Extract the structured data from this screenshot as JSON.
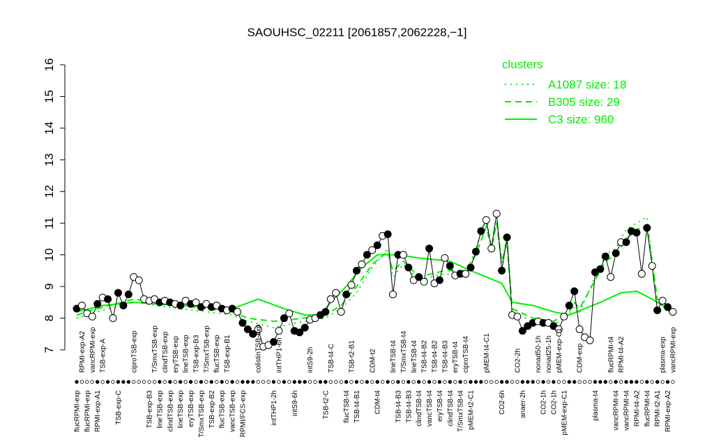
{
  "chart_data": {
    "type": "line",
    "title": "SAOUHSC_02211 [2061857,2062228,−1]",
    "ylim": [
      7,
      16
    ],
    "yticks": [
      7,
      8,
      9,
      10,
      11,
      12,
      13,
      14,
      15,
      16
    ],
    "color": "#000000",
    "categories": [
      "flucRPMI-exp",
      "RPMI-exp-A2",
      "flucRPMI-exp",
      "vancRPMI-exp",
      "RPMI-exp-A1",
      "TSB-exp-A",
      null,
      null,
      "TSB-exp-C",
      null,
      null,
      "ciproTSB-exp",
      null,
      null,
      "TSB-exp-B3",
      "T/SmxTSB-exp",
      "lineTSB-exp",
      "clindTSB-exp",
      "clindTSB-exp",
      "eryTSB-exp",
      "lineTSB-exp",
      "lineTSB-exp",
      "eryTSB-exp",
      "TSB-exp-B3",
      "T/SmxTSB-exp",
      "T/SmxTSB-exp",
      "TSB-exp-B2",
      "flucTSB-exp",
      "flucTSB-exp",
      "TSB-exp-B1",
      "vancTSB-exp",
      null,
      "RPMI/FCS-exp",
      null,
      null,
      "colistinTSB-exp",
      null,
      null,
      "intTHP1-2h",
      "intTHP1-6h",
      null,
      null,
      "intS9-6h",
      null,
      null,
      "intS9-2h",
      null,
      null,
      "TSB-t2-C",
      "TSB-t4-C",
      null,
      null,
      "flucTSB-t4",
      "TSB-t2-B1",
      "TSB-t4-B1",
      null,
      null,
      "CDM-t2",
      "CDM-t4",
      null,
      null,
      "lineTSB-t4",
      "TSB-t4-B3",
      "T/SmxTSB-t4",
      "TSB-t4-B3",
      "lineTSB-t4",
      "clindTSB-t4",
      "TSB-t4-B2",
      "vancTSB-t4",
      "TSB-t4-B2",
      "eryTSB-t4",
      "TSB-t4-B3",
      "clindTSB-t4",
      "eryTSB-t4",
      "T/SmxTSB-t4",
      "ciproTSB-t4",
      "pMEM-t2-C1",
      null,
      null,
      "pMEM-t4-C1",
      null,
      null,
      "CO2-6h",
      null,
      null,
      "CO2-2h",
      "anaer-2h",
      null,
      null,
      "nonad50-1h",
      "CO2-1h",
      "nonad25-1h",
      "CO2-1h",
      "pMEM-exp-C1",
      "pMEM-exp-C1",
      null,
      null,
      "CDM-exp",
      null,
      null,
      "plasma-t4",
      null,
      null,
      "flucRPMI-t4",
      "vancRPMI-t4",
      "RPMI-t4-A2",
      "vancRPMI-t4",
      null,
      "RPMI-t4-A2",
      null,
      "flucRPMI-t4",
      null,
      "RPMI-t2-A1",
      "plasma-exp",
      "RPMI-exp-A2",
      "vancRPMI-exp"
    ],
    "values": [
      8.3,
      8.4,
      8.15,
      8.05,
      8.45,
      8.65,
      8.6,
      8.0,
      8.8,
      8.4,
      8.75,
      9.3,
      9.2,
      8.6,
      8.55,
      8.6,
      8.5,
      8.55,
      8.5,
      8.45,
      8.4,
      8.55,
      8.45,
      8.5,
      8.35,
      8.45,
      8.35,
      8.4,
      8.3,
      8.25,
      8.3,
      8.2,
      7.85,
      7.65,
      7.5,
      7.65,
      7.1,
      7.15,
      7.25,
      7.6,
      8.0,
      8.15,
      7.6,
      7.55,
      7.7,
      7.95,
      8.0,
      8.1,
      8.2,
      8.6,
      8.8,
      8.2,
      8.75,
      9.05,
      9.5,
      9.7,
      10.0,
      10.15,
      10.3,
      10.6,
      10.65,
      8.75,
      10.0,
      10.0,
      9.6,
      9.2,
      9.3,
      9.15,
      10.2,
      9.1,
      9.2,
      9.9,
      9.65,
      9.35,
      9.4,
      9.4,
      9.6,
      10.1,
      10.75,
      11.1,
      10.2,
      11.3,
      9.5,
      10.55,
      8.1,
      8.05,
      7.6,
      7.75,
      7.85,
      7.9,
      7.85,
      7.85,
      7.75,
      7.65,
      8.05,
      8.4,
      8.85,
      7.65,
      7.4,
      7.3,
      9.45,
      9.55,
      9.95,
      9.3,
      10.05,
      10.4,
      10.4,
      10.75,
      10.7,
      9.4,
      10.85,
      9.65,
      8.25,
      8.55,
      8.35,
      8.2
    ],
    "filled": [
      true,
      false,
      false,
      false,
      true,
      false,
      true,
      false,
      true,
      true,
      true,
      false,
      false,
      false,
      false,
      false,
      true,
      false,
      true,
      false,
      true,
      false,
      true,
      false,
      true,
      false,
      true,
      false,
      true,
      false,
      true,
      false,
      true,
      true,
      true,
      false,
      false,
      false,
      true,
      false,
      true,
      false,
      true,
      true,
      true,
      false,
      false,
      true,
      true,
      false,
      false,
      false,
      true,
      false,
      true,
      false,
      true,
      false,
      true,
      false,
      true,
      false,
      true,
      false,
      true,
      false,
      true,
      false,
      true,
      false,
      true,
      false,
      true,
      false,
      true,
      false,
      true,
      true,
      true,
      false,
      false,
      false,
      true,
      true,
      false,
      false,
      true,
      true,
      true,
      false,
      true,
      false,
      true,
      false,
      false,
      true,
      true,
      false,
      false,
      false,
      true,
      true,
      true,
      false,
      true,
      false,
      true,
      true,
      true,
      false,
      true,
      false,
      true,
      false,
      true,
      false
    ],
    "legend": {
      "title": "clusters",
      "position": "top-right"
    },
    "clusters": [
      {
        "name": "A1087 size: 18",
        "color": "#00ee00",
        "style": "dotted",
        "x": [
          0,
          4,
          11,
          20,
          30,
          33,
          38,
          44,
          48,
          51,
          54,
          57,
          60,
          61,
          63,
          66,
          71,
          75,
          77,
          79,
          80,
          81,
          82,
          83,
          84,
          88,
          92,
          95,
          96,
          97,
          100,
          102,
          104,
          106,
          108,
          110,
          111,
          112,
          115
        ],
        "values": [
          8.0,
          8.2,
          8.5,
          8.3,
          8.1,
          7.9,
          7.7,
          7.9,
          8.0,
          8.3,
          8.8,
          9.6,
          10.2,
          9.3,
          9.7,
          9.2,
          9.4,
          9.3,
          10.2,
          11.2,
          10.3,
          11.2,
          9.7,
          10.6,
          8.2,
          7.9,
          7.8,
          8.1,
          8.4,
          8.2,
          9.3,
          10.0,
          10.2,
          10.8,
          11.0,
          11.2,
          9.9,
          8.5,
          8.2
        ]
      },
      {
        "name": "B305 size: 29",
        "color": "#00ee00",
        "style": "dashed",
        "x": [
          0,
          4,
          11,
          20,
          30,
          33,
          38,
          44,
          48,
          51,
          54,
          57,
          60,
          61,
          63,
          66,
          71,
          75,
          77,
          79,
          80,
          81,
          82,
          83,
          84,
          88,
          92,
          95,
          96,
          97,
          100,
          102,
          104,
          106,
          108,
          110,
          111,
          112,
          115
        ],
        "values": [
          8.1,
          8.3,
          8.6,
          8.4,
          8.2,
          8.0,
          7.9,
          8.0,
          8.1,
          8.4,
          9.0,
          9.7,
          10.1,
          9.5,
          9.8,
          9.3,
          9.5,
          9.5,
          10.0,
          10.9,
          10.2,
          11.0,
          9.8,
          10.4,
          8.3,
          8.0,
          7.9,
          8.2,
          8.5,
          8.3,
          9.2,
          9.8,
          10.0,
          10.5,
          10.8,
          10.9,
          9.8,
          8.6,
          8.3
        ]
      },
      {
        "name": "C3 size: 960",
        "color": "#00ee00",
        "style": "solid",
        "x": [
          0,
          5,
          11,
          20,
          30,
          35,
          40,
          44,
          47,
          49,
          52,
          55,
          58,
          62,
          66,
          72,
          76,
          79,
          82,
          84,
          88,
          92,
          95,
          98,
          101,
          105,
          108,
          111,
          113,
          115
        ],
        "values": [
          8.2,
          8.4,
          8.5,
          8.4,
          8.3,
          8.6,
          8.3,
          8.1,
          8.1,
          8.5,
          9.0,
          9.6,
          10.0,
          10.0,
          9.9,
          9.8,
          9.5,
          9.3,
          9.1,
          8.5,
          8.4,
          8.2,
          8.1,
          8.3,
          8.5,
          8.8,
          8.85,
          8.6,
          8.4,
          8.1
        ]
      }
    ]
  }
}
